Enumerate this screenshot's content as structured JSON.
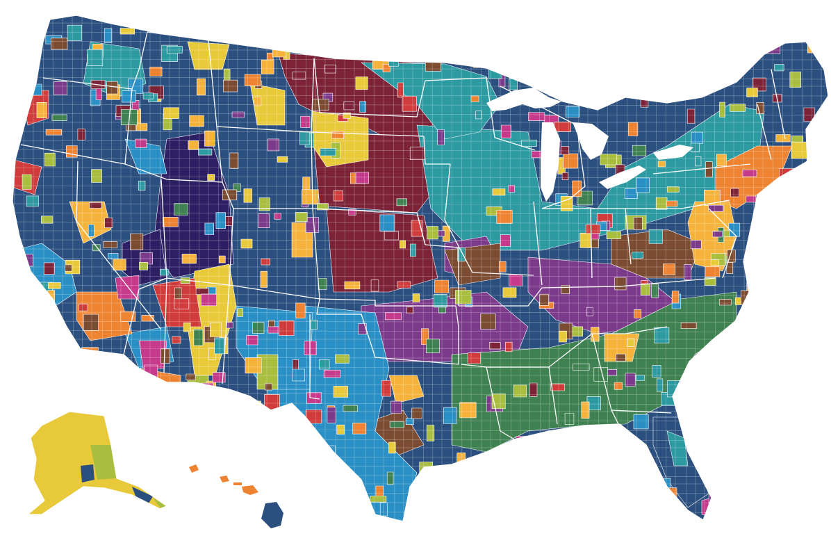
{
  "map": {
    "palette": {
      "navy": "#2b4f7e",
      "teal": "#2d9aa1",
      "maroon": "#7c2338",
      "purple": "#7b3a8a",
      "green": "#3f8150",
      "brown": "#7b4b32",
      "yellow": "#e8c93a",
      "orange": "#ee8332",
      "light_orange": "#f6b33c",
      "red": "#cf3c3b",
      "sky_blue": "#2a8fc4",
      "magenta": "#c53a8a",
      "indigo": "#2c1f64",
      "lime": "#a9bd3e"
    },
    "background": "#ffffff",
    "border_color": "#ffffff"
  }
}
